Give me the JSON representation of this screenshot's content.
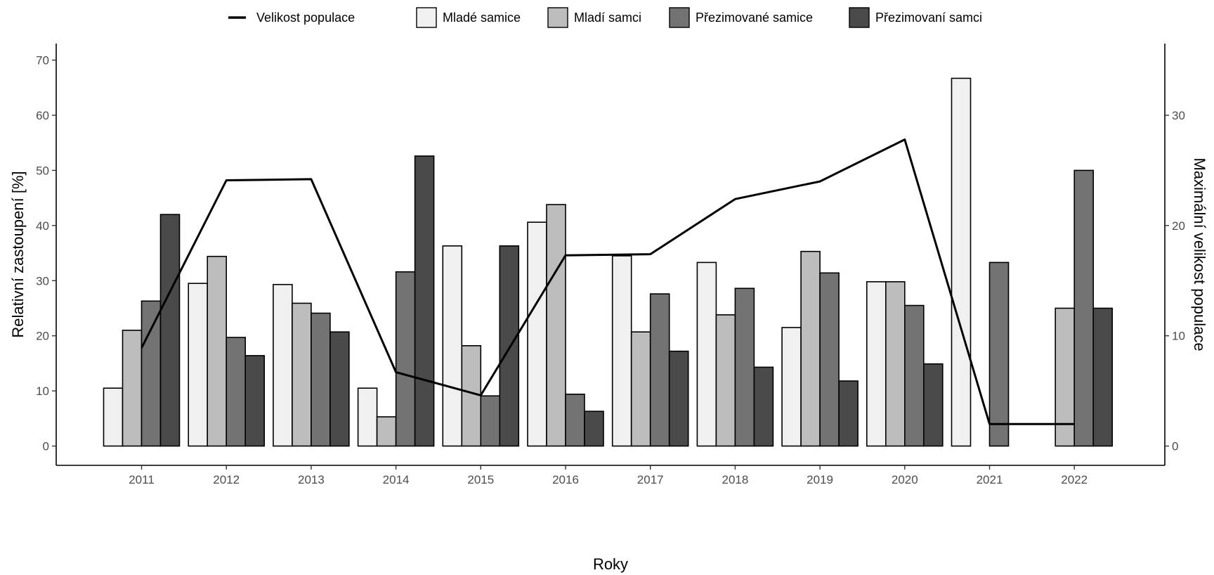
{
  "chart_data": {
    "type": "bar",
    "categories": [
      "2011",
      "2012",
      "2013",
      "2014",
      "2015",
      "2016",
      "2017",
      "2018",
      "2019",
      "2020",
      "2021",
      "2022"
    ],
    "series": [
      {
        "name": "Mladé samice",
        "color": "#f0f0f0",
        "values": [
          10.5,
          29.5,
          29.3,
          10.5,
          36.3,
          40.6,
          34.5,
          33.3,
          21.5,
          29.8,
          66.7,
          0
        ]
      },
      {
        "name": "Mladí samci",
        "color": "#bdbdbd",
        "values": [
          21.0,
          34.4,
          25.9,
          5.3,
          18.2,
          43.8,
          20.7,
          23.8,
          35.3,
          29.8,
          0,
          25.0
        ]
      },
      {
        "name": "Přezimované samice",
        "color": "#737373",
        "values": [
          26.3,
          19.7,
          24.1,
          31.6,
          9.1,
          9.4,
          27.6,
          28.6,
          31.4,
          25.5,
          33.3,
          50.0
        ]
      },
      {
        "name": "Přezimovaní samci",
        "color": "#4a4a4a",
        "values": [
          42.0,
          16.4,
          20.7,
          52.6,
          36.3,
          6.3,
          17.2,
          14.3,
          11.8,
          14.9,
          0,
          25.0
        ]
      }
    ],
    "line_series": {
      "name": "Velikost populace",
      "color": "#000000",
      "axis": "right",
      "values": [
        8.9,
        24.1,
        24.2,
        6.7,
        4.6,
        17.3,
        17.4,
        22.4,
        24.0,
        27.8,
        2.0,
        2.0
      ]
    },
    "xlabel": "Roky",
    "ylabel": "Relativní zastoupení [%]",
    "y2label": "Maximální velikost populace",
    "ylim": [
      -3.5,
      73
    ],
    "y2lim": [
      -1.75,
      36.5
    ],
    "yticks": [
      0,
      10,
      20,
      30,
      40,
      50,
      60,
      70
    ],
    "y2ticks": [
      0,
      10,
      20,
      30
    ],
    "grid": false,
    "legend_position": "top"
  }
}
